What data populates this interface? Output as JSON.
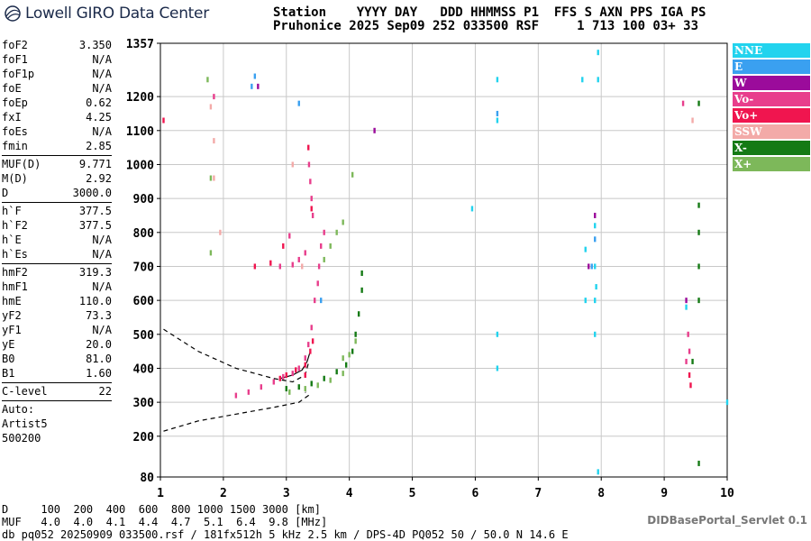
{
  "logo": {
    "text": "Lowell GIRO Data Center"
  },
  "header": {
    "line1": "Station    YYYY DAY   DDD HHMMSS P1  FFS S AXN PPS IGA PS",
    "line2": "Pruhonice 2025 Sep09 252 033500 RSF     1 713 100 03+ 33"
  },
  "params": {
    "group1": [
      {
        "k": "foF2",
        "v": "3.350"
      },
      {
        "k": "foF1",
        "v": "N/A"
      },
      {
        "k": "foF1p",
        "v": "N/A"
      },
      {
        "k": "foE",
        "v": "N/A"
      },
      {
        "k": "foEp",
        "v": "0.62"
      },
      {
        "k": "fxI",
        "v": "4.25"
      },
      {
        "k": "foEs",
        "v": "N/A"
      },
      {
        "k": "fmin",
        "v": "2.85"
      }
    ],
    "group2": [
      {
        "k": "MUF(D)",
        "v": "9.771"
      },
      {
        "k": "M(D)",
        "v": "2.92"
      },
      {
        "k": "D",
        "v": "3000.0"
      }
    ],
    "group3": [
      {
        "k": "h`F",
        "v": "377.5"
      },
      {
        "k": "h`F2",
        "v": "377.5"
      },
      {
        "k": "h`E",
        "v": "N/A"
      },
      {
        "k": "h`Es",
        "v": "N/A"
      }
    ],
    "group4": [
      {
        "k": "hmF2",
        "v": "319.3"
      },
      {
        "k": "hmF1",
        "v": "N/A"
      },
      {
        "k": "hmE",
        "v": "110.0"
      },
      {
        "k": "yF2",
        "v": "73.3"
      },
      {
        "k": "yF1",
        "v": "N/A"
      },
      {
        "k": "yE",
        "v": "20.0"
      },
      {
        "k": "B0",
        "v": "81.0"
      },
      {
        "k": "B1",
        "v": "1.60"
      }
    ],
    "clevel": {
      "k": "C-level",
      "v": "22"
    },
    "auto": [
      "Auto:",
      "Artist5",
      "500200"
    ]
  },
  "legend": [
    {
      "label": "NNE",
      "color": "#22d3ee"
    },
    {
      "label": "E",
      "color": "#3aa0f0"
    },
    {
      "label": "W",
      "color": "#9b0b9b"
    },
    {
      "label": "Vo-",
      "color": "#e83e8c"
    },
    {
      "label": "Vo+",
      "color": "#f0154f"
    },
    {
      "label": "SSW",
      "color": "#f3aaa8"
    },
    {
      "label": "X-",
      "color": "#157a15"
    },
    {
      "label": "X+",
      "color": "#7db85a"
    }
  ],
  "bottom": {
    "d_line": "D     100  200  400  600  800 1000 1500 3000 [km]",
    "muf_line": "MUF   4.0  4.0  4.1  4.4  4.7  5.1  6.4  9.8 [MHz]",
    "db_line": "db pq052 20250909 033500.rsf / 181fx512h 5 kHz 2.5 km / DPS-4D PQ052 50 / 50.0 N 14.6 E"
  },
  "servlet": "DIDBasePortal_Servlet 0.1",
  "chart_data": {
    "type": "scatter",
    "xlabel": "",
    "ylabel": "",
    "xlim": [
      1,
      10
    ],
    "ylim": [
      80,
      1357
    ],
    "xticks": [
      1,
      2,
      3,
      4,
      5,
      6,
      7,
      8,
      9,
      10
    ],
    "yticks": [
      80,
      200,
      300,
      400,
      500,
      600,
      700,
      800,
      900,
      1000,
      1100,
      1200,
      1357
    ],
    "grid": true,
    "legend_position": "right",
    "series": [
      {
        "name": "Vo-",
        "color": "#e83e8c",
        "points": [
          [
            2.2,
            320
          ],
          [
            2.4,
            330
          ],
          [
            2.6,
            345
          ],
          [
            2.8,
            360
          ],
          [
            2.95,
            375
          ],
          [
            3.1,
            385
          ],
          [
            3.2,
            400
          ],
          [
            3.3,
            430
          ],
          [
            3.35,
            470
          ],
          [
            3.4,
            520
          ],
          [
            3.45,
            600
          ],
          [
            3.5,
            650
          ],
          [
            3.52,
            700
          ],
          [
            3.55,
            760
          ],
          [
            3.6,
            800
          ],
          [
            3.42,
            850
          ],
          [
            3.4,
            900
          ],
          [
            3.38,
            950
          ],
          [
            3.36,
            1000
          ],
          [
            3.3,
            740
          ],
          [
            3.2,
            720
          ],
          [
            3.1,
            705
          ],
          [
            2.9,
            700
          ],
          [
            3.05,
            790
          ],
          [
            9.4,
            450
          ],
          [
            9.38,
            500
          ],
          [
            9.35,
            420
          ],
          [
            9.3,
            1180
          ],
          [
            1.85,
            1200
          ]
        ]
      },
      {
        "name": "Vo+",
        "color": "#f0154f",
        "points": [
          [
            2.9,
            370
          ],
          [
            3.0,
            380
          ],
          [
            3.15,
            395
          ],
          [
            3.3,
            410
          ],
          [
            3.38,
            450
          ],
          [
            3.42,
            480
          ],
          [
            2.5,
            700
          ],
          [
            2.75,
            710
          ],
          [
            2.95,
            760
          ],
          [
            3.4,
            870
          ],
          [
            3.35,
            1050
          ],
          [
            9.4,
            380
          ],
          [
            9.42,
            350
          ],
          [
            1.05,
            1130
          ],
          [
            3.3,
            380
          ]
        ]
      },
      {
        "name": "X-",
        "color": "#157a15",
        "points": [
          [
            3.0,
            340
          ],
          [
            3.2,
            345
          ],
          [
            3.4,
            355
          ],
          [
            3.6,
            370
          ],
          [
            3.8,
            390
          ],
          [
            3.95,
            410
          ],
          [
            4.05,
            450
          ],
          [
            4.1,
            500
          ],
          [
            4.15,
            560
          ],
          [
            4.2,
            630
          ],
          [
            4.2,
            680
          ],
          [
            9.55,
            600
          ],
          [
            9.55,
            700
          ],
          [
            9.55,
            800
          ],
          [
            9.55,
            880
          ],
          [
            9.55,
            120
          ],
          [
            9.45,
            420
          ],
          [
            9.55,
            1180
          ]
        ]
      },
      {
        "name": "X+",
        "color": "#7db85a",
        "points": [
          [
            3.05,
            330
          ],
          [
            3.3,
            340
          ],
          [
            3.5,
            350
          ],
          [
            3.7,
            365
          ],
          [
            3.9,
            385
          ],
          [
            4.0,
            440
          ],
          [
            4.1,
            480
          ],
          [
            3.6,
            720
          ],
          [
            3.7,
            760
          ],
          [
            3.8,
            800
          ],
          [
            3.9,
            830
          ],
          [
            1.8,
            960
          ],
          [
            1.8,
            740
          ],
          [
            1.75,
            1250
          ],
          [
            3.9,
            430
          ],
          [
            4.05,
            970
          ]
        ]
      },
      {
        "name": "NNE",
        "color": "#22d3ee",
        "points": [
          [
            6.35,
            1250
          ],
          [
            6.35,
            1130
          ],
          [
            6.35,
            400
          ],
          [
            6.35,
            500
          ],
          [
            7.75,
            750
          ],
          [
            7.75,
            600
          ],
          [
            7.9,
            820
          ],
          [
            7.9,
            700
          ],
          [
            7.9,
            600
          ],
          [
            7.9,
            500
          ],
          [
            7.95,
            1250
          ],
          [
            7.95,
            1330
          ],
          [
            7.95,
            95
          ],
          [
            7.7,
            1250
          ],
          [
            9.35,
            580
          ],
          [
            10.0,
            300
          ],
          [
            5.95,
            870
          ],
          [
            7.92,
            640
          ]
        ]
      },
      {
        "name": "E",
        "color": "#3aa0f0",
        "points": [
          [
            2.5,
            1260
          ],
          [
            6.35,
            1150
          ],
          [
            7.9,
            780
          ],
          [
            7.85,
            700
          ],
          [
            2.45,
            1230
          ],
          [
            3.55,
            600
          ],
          [
            3.2,
            1180
          ]
        ]
      },
      {
        "name": "W",
        "color": "#9b0b9b",
        "points": [
          [
            2.55,
            1230
          ],
          [
            7.9,
            850
          ],
          [
            7.8,
            700
          ],
          [
            4.4,
            1100
          ],
          [
            9.35,
            600
          ]
        ]
      },
      {
        "name": "SSW",
        "color": "#f3aaa8",
        "points": [
          [
            1.8,
            1170
          ],
          [
            1.85,
            1070
          ],
          [
            1.95,
            800
          ],
          [
            9.45,
            1130
          ],
          [
            3.25,
            700
          ],
          [
            3.1,
            1000
          ],
          [
            1.85,
            960
          ]
        ]
      }
    ],
    "curves": [
      {
        "name": "model profile",
        "style": "dashed",
        "x": [
          1.05,
          1.6,
          2.2,
          2.8,
          3.1,
          3.3,
          3.35
        ],
        "y": [
          515,
          450,
          400,
          370,
          360,
          380,
          415
        ]
      },
      {
        "name": "model profile lower",
        "style": "dashed",
        "x": [
          1.05,
          1.6,
          2.2,
          2.8,
          3.2,
          3.35,
          3.3
        ],
        "y": [
          215,
          245,
          265,
          285,
          300,
          320,
          330
        ]
      },
      {
        "name": "model trace",
        "style": "solid",
        "x": [
          2.9,
          3.1,
          3.25,
          3.33,
          3.38
        ],
        "y": [
          370,
          380,
          395,
          420,
          450
        ]
      }
    ]
  }
}
